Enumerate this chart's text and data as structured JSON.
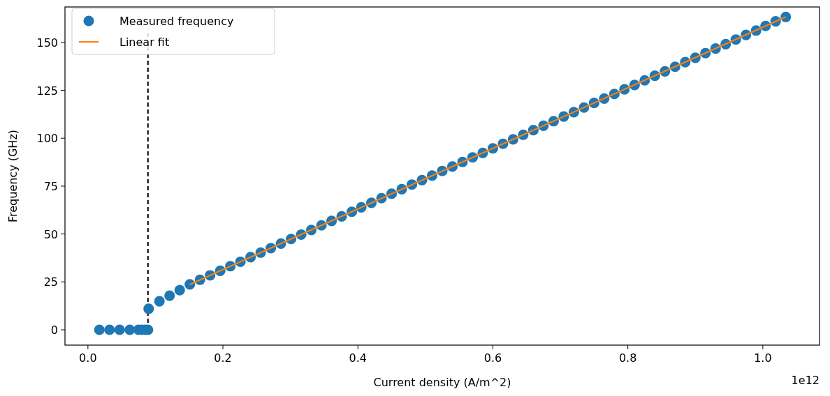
{
  "chart_data": {
    "type": "scatter",
    "xlabel": "Current density (A/m^2)",
    "ylabel": "Frequency (GHz)",
    "annotations": [
      "1e12"
    ],
    "xlim": [
      -0.034,
      1.084
    ],
    "xticks": [
      {
        "value": 0,
        "label": "0.0"
      },
      {
        "value": 0.2,
        "label": "0.2"
      },
      {
        "value": 0.4,
        "label": "0.4"
      },
      {
        "value": 0.6,
        "label": "0.6"
      },
      {
        "value": 0.8,
        "label": "0.8"
      },
      {
        "value": 1,
        "label": "1.0"
      }
    ],
    "ylim": [
      -8,
      168.5
    ],
    "yticks": [
      0,
      25,
      50,
      75,
      100,
      125,
      150
    ],
    "grid": false,
    "legend": "top left",
    "ref_lines": [
      {
        "axis": "x",
        "value": 0.089,
        "color": "#000000",
        "line_style": "dashed"
      }
    ],
    "series": [
      {
        "name": "Measured frequency",
        "marker": "circle",
        "color": "#1f77b4",
        "x": [
          0.017,
          0.032,
          0.047,
          0.062,
          0.075,
          0.08,
          0.085,
          0.089,
          0.09,
          0.106,
          0.121,
          0.136,
          0.151,
          0.166,
          0.181,
          0.196,
          0.211,
          0.226,
          0.241,
          0.256,
          0.271,
          0.286,
          0.301,
          0.316,
          0.331,
          0.346,
          0.361,
          0.376,
          0.391,
          0.405,
          0.42,
          0.435,
          0.45,
          0.465,
          0.48,
          0.495,
          0.51,
          0.525,
          0.54,
          0.555,
          0.57,
          0.585,
          0.6,
          0.615,
          0.63,
          0.645,
          0.66,
          0.675,
          0.69,
          0.705,
          0.72,
          0.735,
          0.75,
          0.765,
          0.78,
          0.795,
          0.81,
          0.825,
          0.84,
          0.855,
          0.87,
          0.885,
          0.9,
          0.915,
          0.93,
          0.945,
          0.96,
          0.975,
          0.99,
          1.004,
          1.019,
          1.034
        ],
        "values": [
          0,
          0,
          0,
          0,
          0,
          0,
          0,
          0,
          11,
          14.9,
          17.8,
          20.7,
          23.7,
          26.1,
          28.4,
          30.8,
          33.2,
          35.5,
          37.9,
          40.3,
          42.6,
          45,
          47.4,
          49.7,
          52.1,
          54.5,
          56.8,
          59.2,
          61.6,
          63.9,
          66.3,
          68.7,
          71,
          73.4,
          75.8,
          78.1,
          80.5,
          82.9,
          85.2,
          87.6,
          90,
          92.3,
          94.7,
          97.1,
          99.4,
          101.8,
          104.2,
          106.5,
          108.9,
          111.3,
          113.6,
          116,
          118.4,
          120.7,
          123.1,
          125.5,
          127.8,
          130.2,
          132.6,
          134.9,
          137.3,
          139.7,
          142,
          144.4,
          146.8,
          149.1,
          151.5,
          153.9,
          156.2,
          158.6,
          161,
          163.3
        ]
      },
      {
        "name": "Linear fit",
        "type": "line",
        "line_style": "solid",
        "marker": "none",
        "color": "#ff7f0e",
        "x": [
          0.151,
          1.034
        ],
        "values": [
          23.7,
          163.3
        ]
      }
    ]
  }
}
